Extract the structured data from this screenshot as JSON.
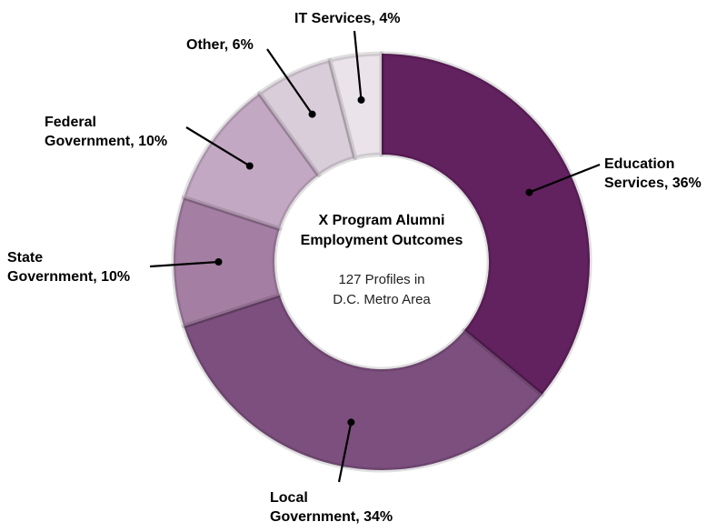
{
  "chart_data": {
    "type": "pie",
    "variant": "donut",
    "center_title": [
      "X Program Alumni",
      "Employment Outcomes"
    ],
    "center_subtitle": [
      "127 Profiles in",
      "D.C. Metro Area"
    ],
    "slices": [
      {
        "id": "education-services",
        "label_lines": [
          "Education",
          "Services, 36%"
        ],
        "value": 36,
        "color": "#62215f"
      },
      {
        "id": "local-government",
        "label_lines": [
          "Local",
          "Government, 34%"
        ],
        "value": 34,
        "color": "#7c4f7e"
      },
      {
        "id": "state-government",
        "label_lines": [
          "State",
          "Government, 10%"
        ],
        "value": 10,
        "color": "#a47ea3"
      },
      {
        "id": "federal-government",
        "label_lines": [
          "Federal",
          "Government, 10%"
        ],
        "value": 10,
        "color": "#c3a8c3"
      },
      {
        "id": "other",
        "label_lines": [
          "Other, 6%"
        ],
        "value": 6,
        "color": "#dacdda"
      },
      {
        "id": "it-services",
        "label_lines": [
          "IT Services, 4%"
        ],
        "value": 4,
        "color": "#ebe3ea"
      }
    ]
  }
}
